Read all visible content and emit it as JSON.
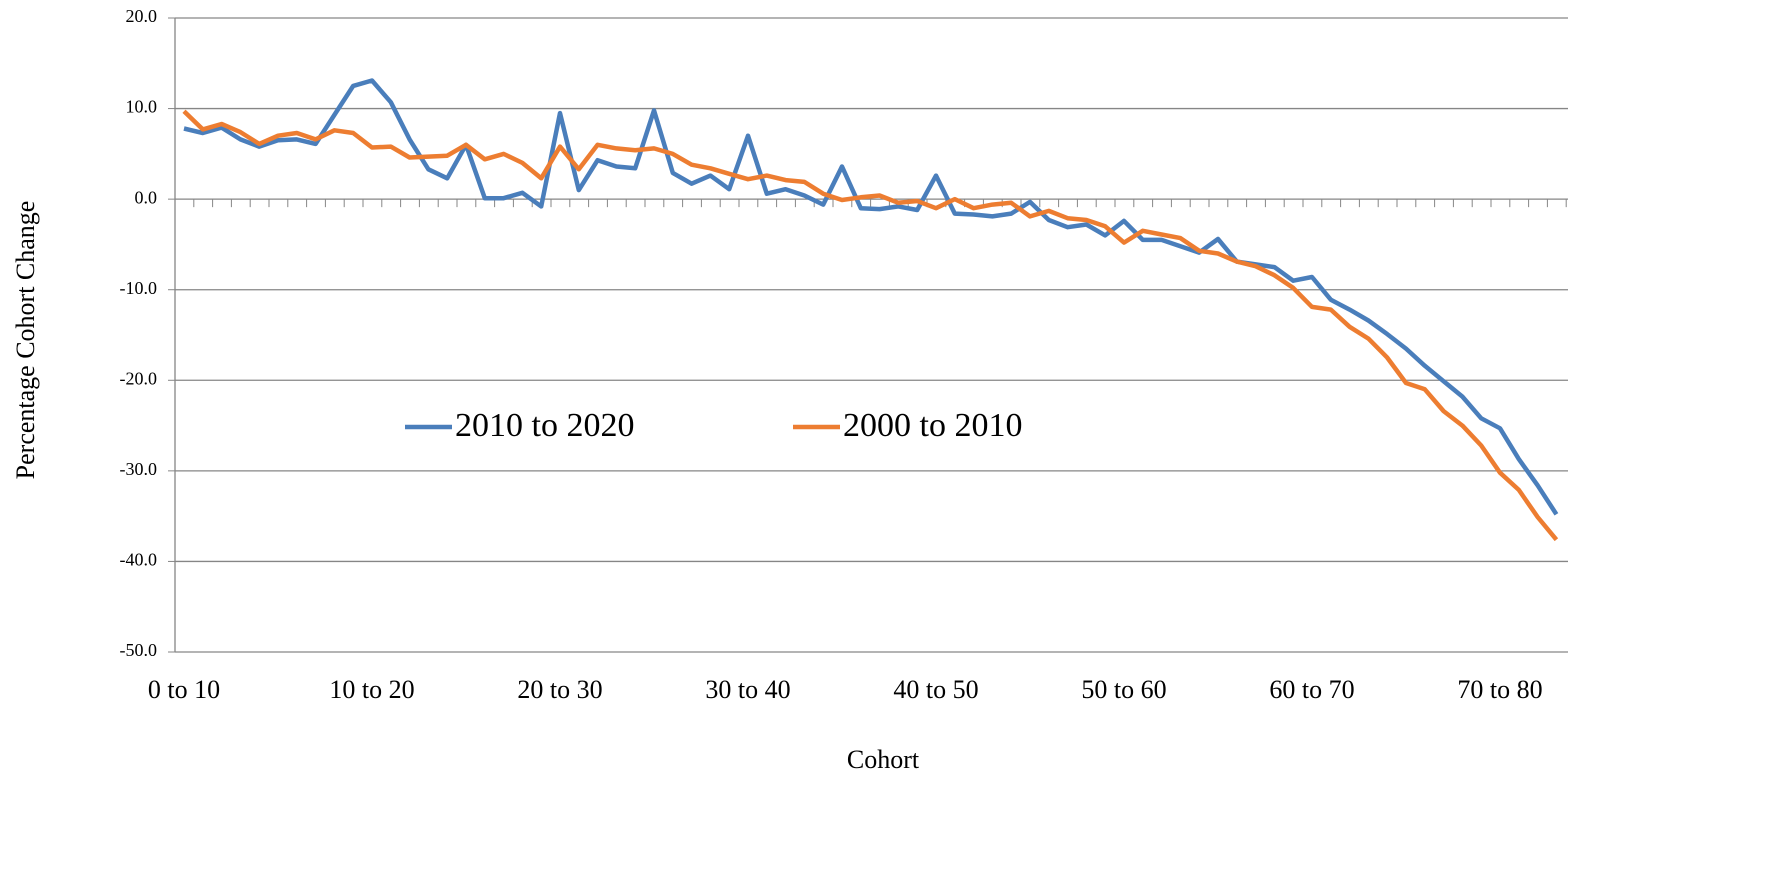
{
  "chart_data": {
    "type": "line",
    "y_label": "Percentage Cohort Change",
    "x_label": "Cohort",
    "categories": [
      "0 to 10",
      null,
      null,
      null,
      null,
      null,
      null,
      null,
      null,
      null,
      "10 to 20",
      null,
      null,
      null,
      null,
      null,
      null,
      null,
      null,
      null,
      "20 to 30",
      null,
      null,
      null,
      null,
      null,
      null,
      null,
      null,
      null,
      "30 to 40",
      null,
      null,
      null,
      null,
      null,
      null,
      null,
      null,
      null,
      "40 to 50",
      null,
      null,
      null,
      null,
      null,
      null,
      null,
      null,
      null,
      "50 to 60",
      null,
      null,
      null,
      null,
      null,
      null,
      null,
      null,
      null,
      "60 to 70",
      null,
      null,
      null,
      null,
      null,
      null,
      null,
      null,
      null,
      "70 to 80",
      null,
      null,
      null
    ],
    "series": [
      {
        "name": "2010 to 2020",
        "color": "#4a7ebb",
        "values": [
          7.8,
          7.3,
          7.9,
          6.6,
          5.8,
          6.5,
          6.6,
          6.1,
          9.3,
          12.5,
          13.1,
          10.7,
          6.6,
          3.3,
          2.3,
          6.0,
          0.1,
          0.1,
          0.7,
          -0.8,
          9.5,
          1.0,
          4.3,
          3.6,
          3.4,
          9.8,
          2.9,
          1.7,
          2.6,
          1.1,
          7.0,
          0.6,
          1.1,
          0.4,
          -0.6,
          3.6,
          -1.0,
          -1.1,
          -0.8,
          -1.2,
          2.6,
          -1.6,
          -1.7,
          -1.9,
          -1.6,
          -0.3,
          -2.3,
          -3.1,
          -2.8,
          -4.0,
          -2.4,
          -4.5,
          -4.5,
          -5.2,
          -5.9,
          -4.4,
          -6.9,
          -7.2,
          -7.5,
          -9.0,
          -8.6,
          -11.1,
          -12.2,
          -13.4,
          -14.9,
          -16.5,
          -18.4,
          -20.1,
          -21.8,
          -24.2,
          -25.3,
          -28.7,
          -31.6,
          -34.8
        ]
      },
      {
        "name": "2000 to 2010",
        "color": "#ed7d31",
        "values": [
          9.7,
          7.7,
          8.3,
          7.4,
          6.1,
          7.0,
          7.3,
          6.6,
          7.6,
          7.3,
          5.7,
          5.8,
          4.6,
          4.7,
          4.8,
          6.0,
          4.4,
          5.0,
          4.0,
          2.3,
          5.8,
          3.3,
          6.0,
          5.6,
          5.4,
          5.6,
          5.0,
          3.8,
          3.4,
          2.8,
          2.2,
          2.6,
          2.1,
          1.9,
          0.6,
          -0.1,
          0.2,
          0.4,
          -0.4,
          -0.2,
          -1.0,
          0.0,
          -1.0,
          -0.6,
          -0.4,
          -1.9,
          -1.3,
          -2.1,
          -2.3,
          -3.0,
          -4.8,
          -3.5,
          -3.9,
          -4.3,
          -5.7,
          -6.0,
          -6.9,
          -7.4,
          -8.4,
          -9.8,
          -11.9,
          -12.2,
          -14.1,
          -15.4,
          -17.5,
          -20.3,
          -21.0,
          -23.4,
          -25.0,
          -27.2,
          -30.2,
          -32.1,
          -35.1,
          -37.6
        ]
      }
    ],
    "ylim": [
      -50,
      20
    ],
    "yticks": [
      {
        "value": -50,
        "label": "-50.0"
      },
      {
        "value": -40,
        "label": "-40.0"
      },
      {
        "value": -30,
        "label": "-30.0"
      },
      {
        "value": -20,
        "label": "-20.0"
      },
      {
        "value": -10,
        "label": "-10.0"
      },
      {
        "value": 0,
        "label": "0.0"
      },
      {
        "value": 10,
        "label": "10.0"
      },
      {
        "value": 20,
        "label": "20.0"
      }
    ],
    "grid": true
  }
}
